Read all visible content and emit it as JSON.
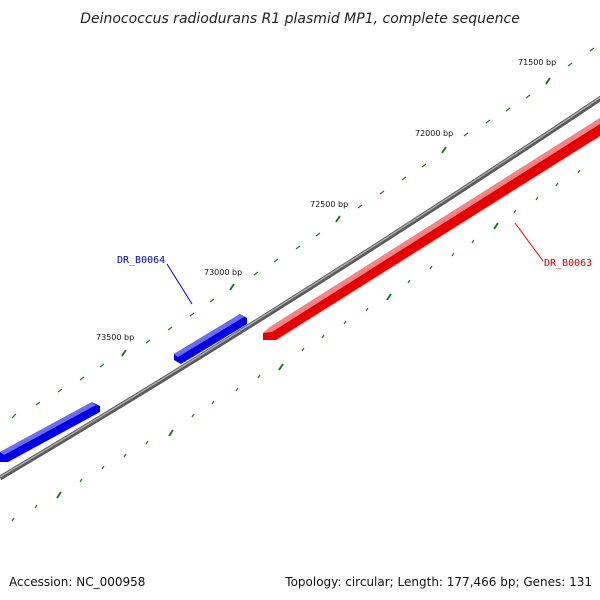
{
  "title": "Deinococcus radiodurans R1 plasmid MP1, complete sequence",
  "footer": {
    "accession": "Accession: NC_000958",
    "summary": "Topology: circular; Length: 177,466 bp; Genes: 131"
  },
  "map": {
    "topology": "circular",
    "backbone_color": "#808080",
    "tick_color": "#1a7a1a",
    "ticks": [
      {
        "label": "71500 bp"
      },
      {
        "label": "72000 bp"
      },
      {
        "label": "72500 bp"
      },
      {
        "label": "73000 bp"
      },
      {
        "label": "73500 bp"
      }
    ],
    "genes": [
      {
        "label": "DR_B0064",
        "strand": "forward",
        "color": "#0000ff"
      },
      {
        "label": "DR_B0063",
        "strand": "reverse",
        "color": "#ff0000"
      }
    ]
  }
}
